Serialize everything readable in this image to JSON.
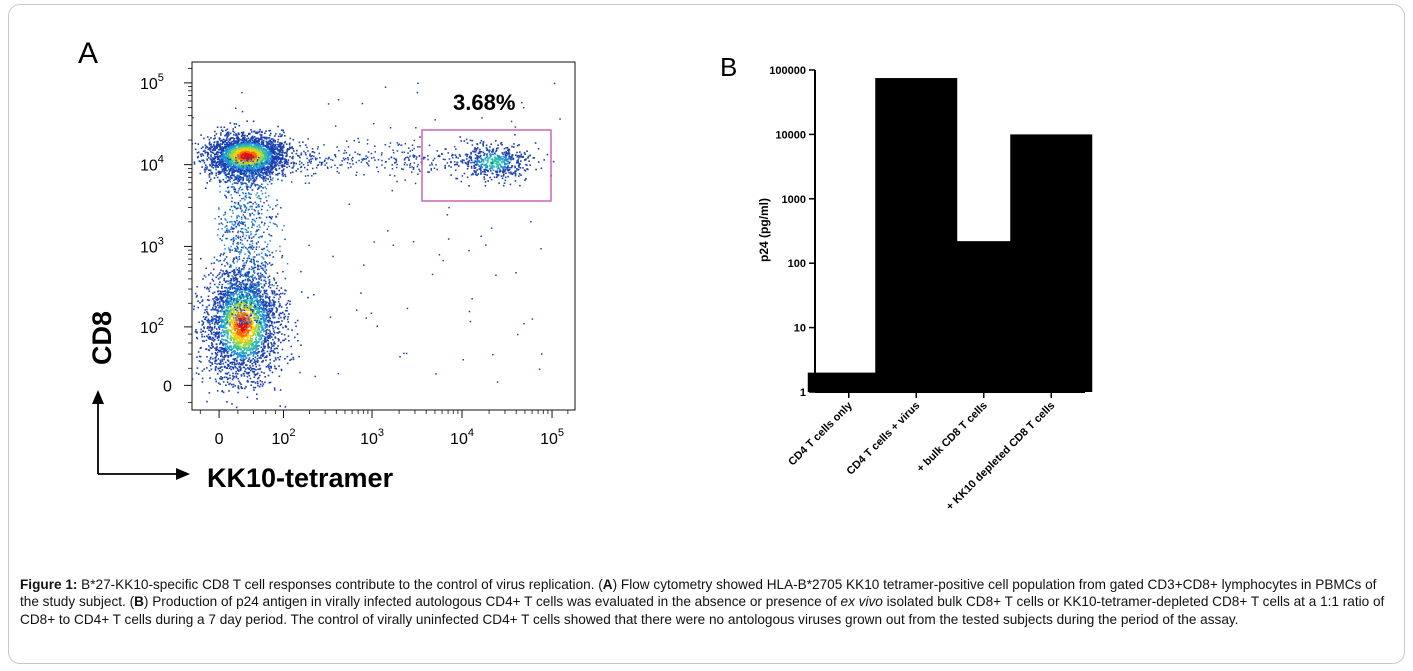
{
  "panel_a": {
    "label": "A",
    "gate_percent": "3.68%",
    "ylabel": "CD8",
    "xlabel": "KK10-tetramer"
  },
  "panel_b": {
    "label": "B"
  },
  "chart_data": [
    {
      "type": "scatter",
      "subtype": "flow-cytometry density plot",
      "xlabel": "KK10-tetramer",
      "ylabel": "CD8",
      "x_scale": "biexponential",
      "y_scale": "biexponential",
      "x_ticks": [
        {
          "value": 0,
          "label": "0"
        },
        {
          "value": 100,
          "label": "10",
          "exp": "2"
        },
        {
          "value": 1000,
          "label": "10",
          "exp": "3"
        },
        {
          "value": 10000,
          "label": "10",
          "exp": "4"
        },
        {
          "value": 100000,
          "label": "10",
          "exp": "5"
        }
      ],
      "y_ticks": [
        {
          "value": 0,
          "label": "0"
        },
        {
          "value": 100,
          "label": "10",
          "exp": "2"
        },
        {
          "value": 1000,
          "label": "10",
          "exp": "3"
        },
        {
          "value": 10000,
          "label": "10",
          "exp": "4"
        },
        {
          "value": 100000,
          "label": "10",
          "exp": "5"
        }
      ],
      "populations": [
        {
          "center": [
            30,
            13000
          ],
          "density": "high"
        },
        {
          "center": [
            25,
            110
          ],
          "density": "high"
        },
        {
          "center": [
            22000,
            11000
          ],
          "density": "medium"
        }
      ],
      "gate": {
        "x_range": [
          5000,
          130000
        ],
        "y_range": [
          3800,
          32000
        ],
        "percent": "3.68%"
      }
    },
    {
      "type": "bar",
      "ylabel": "p24 (pg/ml)",
      "y_scale": "log",
      "ylim": [
        1,
        100000
      ],
      "y_ticks": [
        "1",
        "10",
        "100",
        "1000",
        "10000",
        "100000"
      ],
      "categories": [
        "CD4 T cells only",
        "CD4 T cells + virus",
        "+ bulk CD8 T cells",
        "+ KK10 depleted CD8 T cells"
      ],
      "values": [
        2,
        75000,
        220,
        10000
      ]
    }
  ],
  "caption": {
    "lead": "Figure 1:",
    "t1": " B*27-KK10-specific CD8 T cell responses contribute to the control of virus replication. (",
    "a": "A",
    "t2": ") Flow cytometry showed HLA-B*2705 KK10 tetramer-positive cell population from gated CD3+CD8+ lymphocytes in PBMCs of the study subject. (",
    "b": "B",
    "t3": ") Production of p24 antigen in virally infected autologous CD4+ T cells was evaluated in the absence or presence of ",
    "exvivo": "ex vivo",
    "t4": " isolated bulk CD8+ T cells or KK10-tetramer-depleted CD8+ T cells at a 1:1 ratio of CD8+ to CD4+ T cells during a 7 day period. The control of virally uninfected CD4+ T cells showed that there were no antologous viruses grown out from the tested subjects during the period of the assay."
  }
}
